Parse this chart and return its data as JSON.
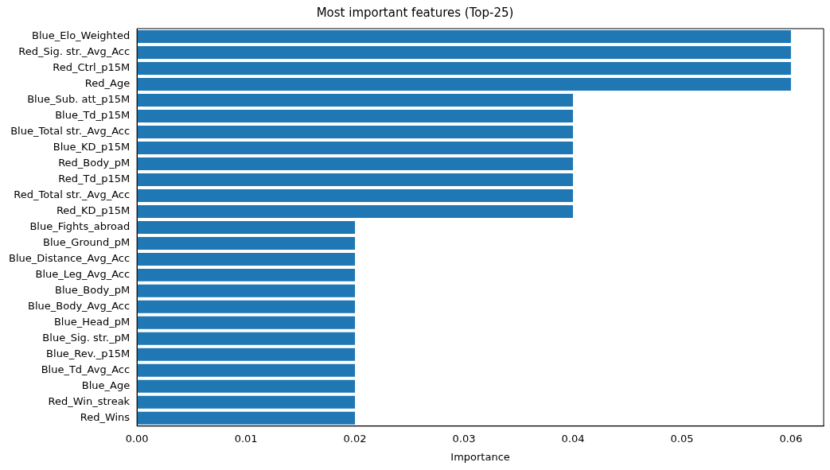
{
  "chart_data": {
    "type": "bar",
    "orientation": "horizontal",
    "title": "Most important features (Top-25)",
    "xlabel": "Importance",
    "categories": [
      "Blue_Elo_Weighted",
      "Red_Sig. str._Avg_Acc",
      "Red_Ctrl_p15M",
      "Red_Age",
      "Blue_Sub. att_p15M",
      "Blue_Td_p15M",
      "Blue_Total str._Avg_Acc",
      "Blue_KD_p15M",
      "Red_Body_pM",
      "Red_Td_p15M",
      "Red_Total str._Avg_Acc",
      "Red_KD_p15M",
      "Blue_Fights_abroad",
      "Blue_Ground_pM",
      "Blue_Distance_Avg_Acc",
      "Blue_Leg_Avg_Acc",
      "Blue_Body_pM",
      "Blue_Body_Avg_Acc",
      "Blue_Head_pM",
      "Blue_Sig. str._pM",
      "Blue_Rev._p15M",
      "Blue_Td_Avg_Acc",
      "Blue_Age",
      "Red_Win_streak",
      "Red_Wins"
    ],
    "values": [
      0.06,
      0.06,
      0.06,
      0.06,
      0.04,
      0.04,
      0.04,
      0.04,
      0.04,
      0.04,
      0.04,
      0.04,
      0.02,
      0.02,
      0.02,
      0.02,
      0.02,
      0.02,
      0.02,
      0.02,
      0.02,
      0.02,
      0.02,
      0.02,
      0.02
    ],
    "color": "#1f77b4",
    "xlim": [
      0,
      0.063
    ],
    "xticks": [
      {
        "value": 0,
        "label": "0.00"
      },
      {
        "value": 0.01,
        "label": "0.01"
      },
      {
        "value": 0.02,
        "label": "0.02"
      },
      {
        "value": 0.03,
        "label": "0.03"
      },
      {
        "value": 0.04,
        "label": "0.04"
      },
      {
        "value": 0.05,
        "label": "0.05"
      },
      {
        "value": 0.06,
        "label": "0.06"
      }
    ],
    "grid": false,
    "legend": false
  }
}
